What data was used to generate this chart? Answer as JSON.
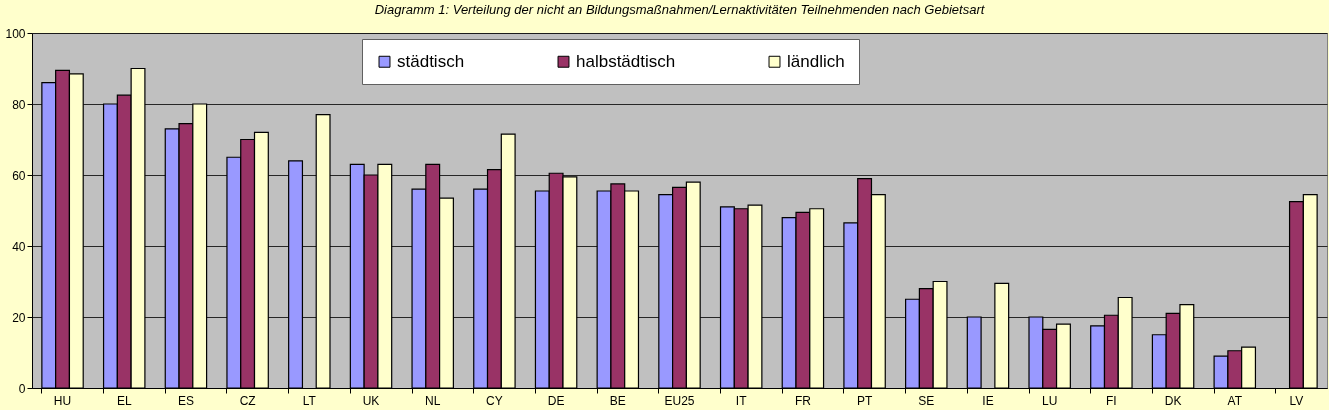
{
  "chart_data": {
    "type": "bar",
    "title": "Diagramm 1: Verteilung der nicht an Bildungsmaßnahmen/Lernaktivitäten Teilnehmenden nach Gebietsart",
    "categories": [
      "HU",
      "EL",
      "ES",
      "CZ",
      "LT",
      "UK",
      "NL",
      "CY",
      "DE",
      "BE",
      "EU25",
      "IT",
      "FR",
      "PT",
      "SE",
      "IE",
      "LU",
      "FI",
      "DK",
      "AT",
      "LV"
    ],
    "series": [
      {
        "name": "städtisch",
        "color": "#9999ff",
        "values": [
          86,
          80,
          73,
          65,
          64,
          63,
          56,
          56,
          55.5,
          55.5,
          54.5,
          51,
          48,
          46.5,
          25,
          20,
          20,
          17.5,
          15,
          9,
          null
        ]
      },
      {
        "name": "halbstädtisch",
        "color": "#993366",
        "values": [
          89.5,
          82.5,
          74.5,
          70,
          null,
          60,
          63,
          61.5,
          60.5,
          57.5,
          56.5,
          50.5,
          49.5,
          59,
          28,
          null,
          16.5,
          20.5,
          21,
          10.5,
          52.5
        ]
      },
      {
        "name": "ländlich",
        "color": "#ffffcc",
        "values": [
          88.5,
          90,
          80,
          72,
          77,
          63,
          53.5,
          71.5,
          59.5,
          55.5,
          58,
          51.5,
          50.5,
          54.5,
          30,
          29.5,
          18,
          25.5,
          23.5,
          11.5,
          54.5
        ]
      }
    ],
    "ylim": [
      0,
      100
    ],
    "yticks": [
      0,
      20,
      40,
      60,
      80,
      100
    ],
    "grid": "y",
    "legend": "top"
  }
}
